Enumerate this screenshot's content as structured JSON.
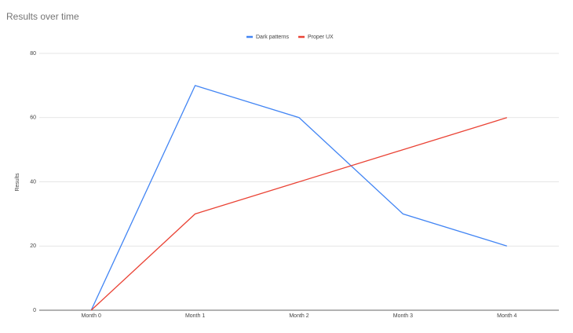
{
  "chart_data": {
    "type": "line",
    "title": "Results over time",
    "y_label": "Results",
    "categories": [
      "Month 0",
      "Month 1",
      "Month 2",
      "Month 3",
      "Month 4"
    ],
    "series": [
      {
        "name": "Dark patterns",
        "color": "#4285f4",
        "values": [
          0,
          70,
          60,
          30,
          20
        ]
      },
      {
        "name": "Proper UX",
        "color": "#ea4335",
        "values": [
          0,
          30,
          40,
          50,
          60
        ]
      }
    ],
    "ylim": [
      0,
      80
    ],
    "yticks": [
      0,
      20,
      40,
      60,
      80
    ],
    "grid": true,
    "legend": "top"
  }
}
